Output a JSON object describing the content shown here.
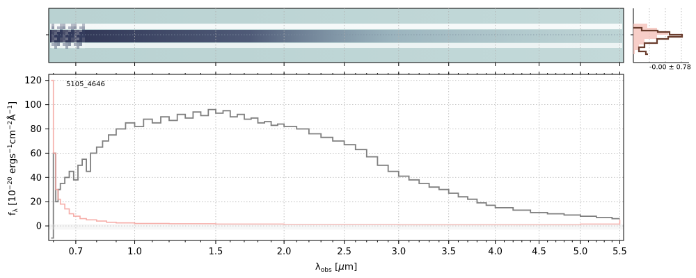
{
  "chart_data": {
    "type": "line",
    "spectrum_id": "5105_4646",
    "xlabel": "λ_obs [μm]",
    "ylabel": "f_λ [10^-20 ergs^-1 cm^-2 Å^-1]",
    "x_scale": "nonlinear (approximately λ^0.5)",
    "xlim": [
      0.58,
      5.55
    ],
    "ylim": [
      -12,
      125
    ],
    "x_ticks": [
      "0.7",
      "1.0",
      "1.5",
      "2.0",
      "2.5",
      "3.0",
      "3.5",
      "4.0",
      "4.5",
      "5.0",
      "5.5"
    ],
    "x_tick_values": [
      0.7,
      1.0,
      1.5,
      2.0,
      2.5,
      3.0,
      3.5,
      4.0,
      4.5,
      5.0,
      5.5
    ],
    "y_ticks": [
      "0",
      "20",
      "40",
      "60",
      "80",
      "100",
      "120"
    ],
    "y_tick_values": [
      0,
      20,
      40,
      60,
      80,
      100,
      120
    ],
    "grid": true,
    "series": [
      {
        "style": "steps",
        "color": "#7f7f7f",
        "x": [
          0.59,
          0.6,
          0.61,
          0.62,
          0.63,
          0.65,
          0.67,
          0.69,
          0.71,
          0.73,
          0.75,
          0.77,
          0.8,
          0.83,
          0.86,
          0.9,
          0.95,
          1.0,
          1.05,
          1.1,
          1.15,
          1.2,
          1.25,
          1.3,
          1.35,
          1.4,
          1.45,
          1.5,
          1.55,
          1.6,
          1.65,
          1.7,
          1.75,
          1.8,
          1.85,
          1.9,
          1.95,
          2.0,
          2.1,
          2.2,
          2.3,
          2.4,
          2.5,
          2.6,
          2.7,
          2.8,
          2.9,
          3.0,
          3.1,
          3.2,
          3.3,
          3.4,
          3.5,
          3.6,
          3.7,
          3.8,
          3.9,
          4.0,
          4.2,
          4.4,
          4.6,
          4.8,
          5.0,
          5.2,
          5.4,
          5.5
        ],
        "y": [
          -10,
          60,
          20,
          30,
          35,
          40,
          45,
          38,
          50,
          55,
          45,
          60,
          65,
          70,
          75,
          80,
          85,
          82,
          88,
          85,
          90,
          87,
          92,
          89,
          94,
          91,
          96,
          93,
          95,
          90,
          92,
          88,
          89,
          85,
          86,
          83,
          84,
          82,
          80,
          76,
          73,
          70,
          67,
          63,
          57,
          50,
          45,
          41,
          38,
          35,
          32,
          30,
          27,
          24,
          22,
          19,
          17,
          15,
          13,
          11,
          10,
          9,
          8,
          7,
          6,
          6
        ]
      },
      {
        "style": "steps",
        "color": "#f4a09a",
        "x": [
          0.59,
          0.6,
          0.61,
          0.62,
          0.63,
          0.65,
          0.67,
          0.69,
          0.72,
          0.75,
          0.8,
          0.85,
          0.9,
          1.0,
          1.2,
          1.5,
          2.0,
          3.0,
          4.0,
          5.0,
          5.5
        ],
        "y": [
          120,
          60,
          30,
          22,
          18,
          14,
          10,
          8,
          6,
          5,
          4,
          3,
          2.5,
          2,
          1.8,
          1.5,
          1.2,
          1,
          1,
          1.5,
          5
        ]
      }
    ],
    "spectrum_2d": {
      "type": "heatmap",
      "colormap": "cubehelix-like gray/blue",
      "trace": "dark band across the middle, strongest around 1–2 μm, fading toward long wavelengths"
    },
    "profile_histogram": {
      "annotation": "-0.00 ± 0.78"
    }
  }
}
